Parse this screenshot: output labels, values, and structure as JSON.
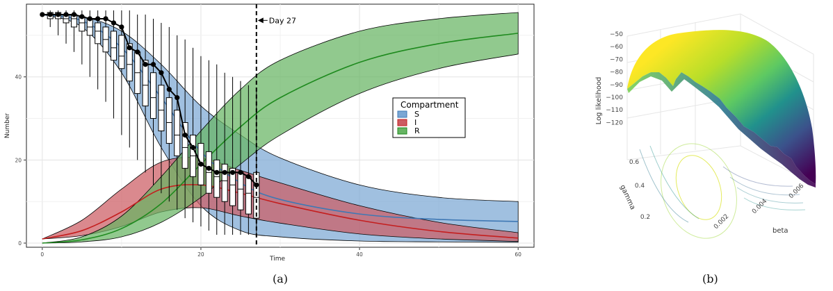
{
  "figure": {
    "caption_a": "(a)",
    "caption_b": "(b)"
  },
  "chart_data": [
    {
      "type": "area",
      "xlabel": "Time",
      "ylabel": "Number",
      "xlim": [
        -2,
        62
      ],
      "ylim": [
        -1,
        57.5
      ],
      "x_ticks": [
        "0",
        "20",
        "40",
        "60"
      ],
      "y_ticks": [
        "0",
        "20",
        "40"
      ],
      "grid": true,
      "legend": {
        "title": "Compartment",
        "placement": "center-right",
        "entries": [
          "S",
          "I",
          "R"
        ]
      },
      "annotation": {
        "text": "Day 27",
        "x": 27
      },
      "colors": {
        "S_fill": "#7ba7d4",
        "S_line": "#3f78b4",
        "I_fill": "#cc5b62",
        "I_line": "#c41e1e",
        "R_fill": "#67b463",
        "R_line": "#1e8a1e"
      },
      "bands": [
        {
          "name": "S",
          "x": [
            0,
            5,
            10,
            15,
            20,
            25,
            30,
            40,
            50,
            60
          ],
          "lower": [
            55,
            52,
            41,
            23,
            9,
            3,
            1.5,
            0.5,
            0.3,
            0.2
          ],
          "mean": [
            55,
            53.5,
            47,
            35,
            22,
            14.5,
            10.5,
            7,
            5.7,
            5.2
          ],
          "upper": [
            55,
            54.5,
            51,
            43,
            33,
            26,
            20.5,
            14,
            11,
            10
          ]
        },
        {
          "name": "I",
          "x": [
            0,
            5,
            10,
            15,
            20,
            25,
            30,
            40,
            50,
            60
          ],
          "lower": [
            1,
            1.8,
            4,
            7.5,
            8.5,
            6.5,
            4.8,
            2.2,
            1,
            0.4
          ],
          "mean": [
            1,
            3,
            7.5,
            13,
            14,
            12,
            9.5,
            5.5,
            2.8,
            1.2
          ],
          "upper": [
            1,
            5.5,
            13,
            19.5,
            20.5,
            17.5,
            14.5,
            9,
            5,
            2.5
          ]
        },
        {
          "name": "R",
          "x": [
            0,
            5,
            10,
            15,
            20,
            25,
            30,
            40,
            50,
            60
          ],
          "lower": [
            0,
            0.3,
            1.5,
            5,
            11,
            19,
            26,
            36,
            42,
            45.5
          ],
          "mean": [
            0,
            0.8,
            3.5,
            9.5,
            19,
            28,
            35,
            43.5,
            48,
            50.5
          ],
          "upper": [
            0,
            1.5,
            6.5,
            16,
            27,
            37,
            44,
            51,
            54,
            55.5
          ]
        }
      ],
      "observed": {
        "x": [
          0,
          1,
          2,
          3,
          4,
          5,
          6,
          7,
          8,
          9,
          10,
          11,
          12,
          13,
          14,
          15,
          16,
          17,
          18,
          19,
          20,
          21,
          22,
          23,
          24,
          25,
          26,
          27
        ],
        "y": [
          55,
          55,
          55,
          55,
          55,
          54.5,
          54,
          54,
          54,
          53,
          52,
          47,
          46,
          43,
          43,
          41,
          37,
          35,
          26,
          23,
          19,
          18,
          17,
          17,
          17,
          17,
          16,
          14
        ]
      },
      "boxplots": {
        "x": [
          1,
          2,
          3,
          4,
          5,
          6,
          7,
          8,
          9,
          10,
          11,
          12,
          13,
          14,
          15,
          16,
          17,
          18,
          19,
          20,
          21,
          22,
          23,
          24,
          25,
          26,
          27
        ],
        "q1": [
          54,
          54,
          53,
          52,
          51,
          50,
          48,
          46,
          44,
          42,
          39,
          36,
          33,
          30,
          27,
          24,
          21,
          18,
          16,
          14,
          12,
          11,
          10,
          9,
          8,
          7,
          6
        ],
        "q3": [
          55.5,
          55.5,
          55,
          55,
          54.5,
          54,
          53,
          52,
          51,
          50,
          48,
          46,
          44,
          41,
          38,
          35,
          32,
          29,
          26,
          24,
          22,
          20,
          19,
          18,
          17,
          16,
          17
        ],
        "median": [
          55,
          55,
          54,
          54,
          53,
          52,
          51,
          49,
          47,
          45,
          43,
          41,
          38,
          35,
          32,
          29,
          26,
          23,
          21,
          19,
          17,
          16,
          15,
          14,
          13,
          12,
          11
        ],
        "wlo": [
          52,
          50,
          48,
          46,
          43,
          40,
          37,
          34,
          30,
          26,
          23,
          20,
          17,
          14,
          12,
          10,
          8,
          6,
          5,
          4,
          3,
          2,
          2,
          2,
          2,
          2,
          2
        ],
        "whi": [
          56,
          56,
          56,
          56,
          56,
          56,
          56,
          56,
          56,
          56,
          56,
          55,
          55,
          54,
          53,
          52,
          50,
          49,
          47,
          45,
          44,
          43,
          41,
          40,
          39,
          38,
          37
        ]
      }
    },
    {
      "type": "surface3d",
      "zlabel": "Log likelihood",
      "xlabel": "beta",
      "ylabel": "gamma",
      "z_ticks": [
        "−50",
        "−60",
        "−70",
        "−80",
        "−90",
        "−100",
        "−110",
        "−120"
      ],
      "beta_ticks": [
        "0.002",
        "0.004",
        "0.006"
      ],
      "gamma_ticks": [
        "0.2",
        "0.4",
        "0.6"
      ],
      "colormap": "viridis",
      "colors": [
        "#440154",
        "#3b528b",
        "#21918c",
        "#5ec962",
        "#fde725"
      ]
    }
  ]
}
